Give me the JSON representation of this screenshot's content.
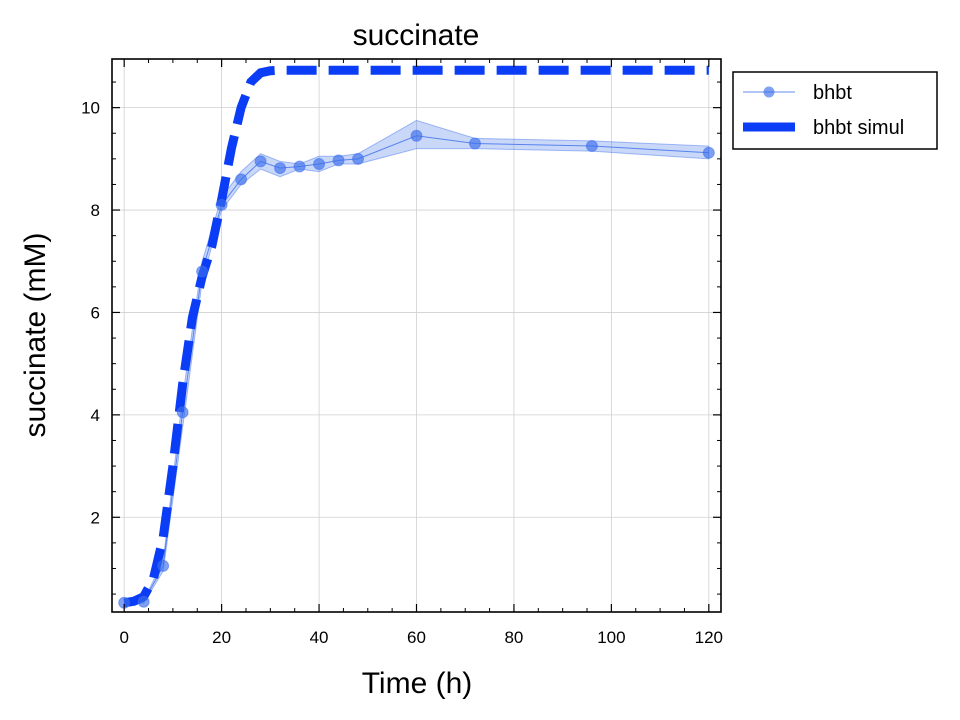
{
  "chart_data": {
    "type": "line",
    "title": "succinate",
    "xlabel": "Time (h)",
    "ylabel": "succinate (mM)",
    "xlim": [
      -2.5,
      122.5
    ],
    "ylim": [
      0.15,
      10.95
    ],
    "xticks": [
      0,
      20,
      40,
      60,
      80,
      100,
      120
    ],
    "yticks": [
      2,
      4,
      6,
      8,
      10
    ],
    "grid": true,
    "legend_position": "outside-top-right",
    "series": [
      {
        "name": "bhbt",
        "style": "line-with-markers-and-band",
        "color": "#3c6eeb",
        "x": [
          0,
          4,
          8,
          12,
          16,
          20,
          24,
          28,
          32,
          36,
          40,
          44,
          48,
          60,
          72,
          96,
          120
        ],
        "y": [
          0.33,
          0.35,
          1.05,
          4.05,
          6.8,
          8.1,
          8.6,
          8.95,
          8.82,
          8.85,
          8.9,
          8.97,
          9.0,
          9.45,
          9.3,
          9.25,
          9.12
        ],
        "y_lower": [
          0.3,
          0.32,
          0.95,
          3.75,
          6.6,
          8.0,
          8.5,
          8.8,
          8.65,
          8.8,
          8.75,
          8.9,
          8.9,
          9.2,
          9.2,
          9.15,
          9.0
        ],
        "y_upper": [
          0.36,
          0.38,
          1.15,
          4.35,
          7.0,
          8.25,
          8.75,
          9.1,
          8.95,
          8.9,
          9.05,
          9.05,
          9.1,
          9.75,
          9.4,
          9.35,
          9.25
        ]
      },
      {
        "name": "bhbt simul",
        "style": "thick-dashed-line",
        "color": "#0a3df5",
        "x": [
          0,
          2,
          4,
          6,
          8,
          10,
          12,
          14,
          16,
          18,
          20,
          22,
          24,
          26,
          28,
          30,
          32,
          36,
          40,
          60,
          80,
          100,
          120
        ],
        "y": [
          0.33,
          0.36,
          0.45,
          0.8,
          1.6,
          3.0,
          4.6,
          5.9,
          6.7,
          7.3,
          8.2,
          9.2,
          10.0,
          10.5,
          10.68,
          10.72,
          10.73,
          10.73,
          10.73,
          10.73,
          10.73,
          10.73,
          10.73
        ]
      }
    ]
  }
}
